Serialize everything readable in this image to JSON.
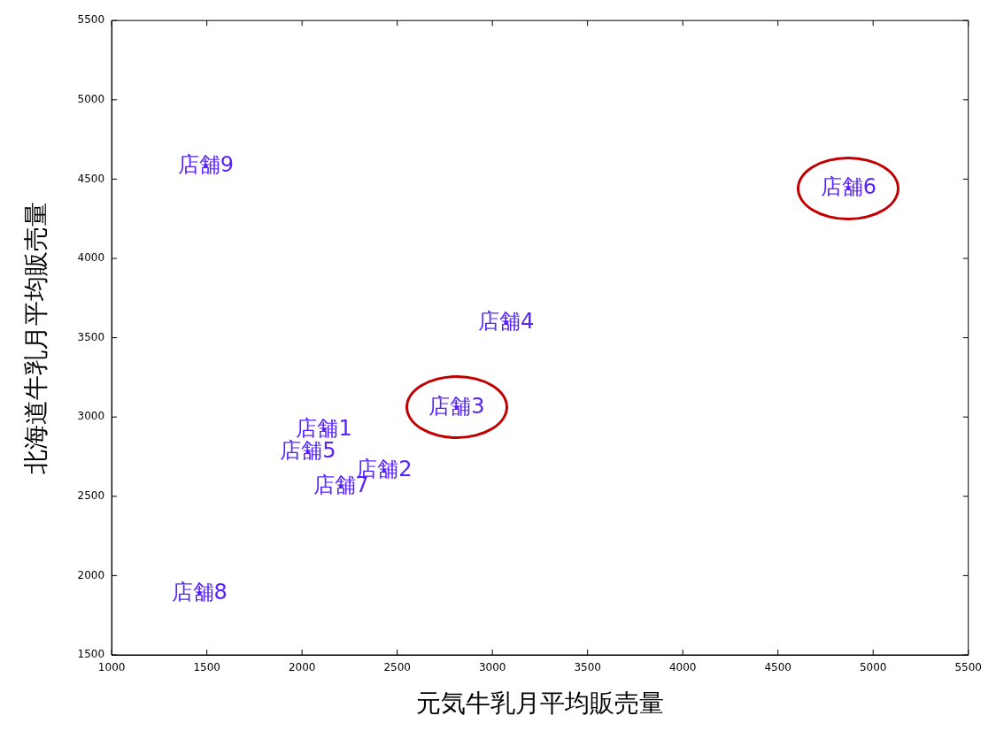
{
  "chart_data": {
    "type": "scatter",
    "xlabel": "元気牛乳月平均販売量",
    "ylabel": "北海道牛乳月平均販売量",
    "x": [
      2116,
      2431,
      2813,
      3072,
      2031,
      4870,
      2205,
      1461,
      1494
    ],
    "values": [
      2920,
      2661,
      3060,
      3595,
      2779,
      4442,
      2563,
      1889,
      4582
    ],
    "value_labels": [
      "店舗1",
      "店舗2",
      "店舗3",
      "店舗4",
      "店舗5",
      "店舗6",
      "店舗7",
      "店舗8",
      "店舗9"
    ],
    "color": "#5522ff",
    "marker": "circle",
    "grid": false,
    "xlim": [
      1000,
      5500
    ],
    "xticks": [
      1000,
      1500,
      2000,
      2500,
      3000,
      3500,
      4000,
      4500,
      5000,
      5500
    ],
    "ylim": [
      1500,
      5500
    ],
    "yticks": [
      1500,
      2000,
      2500,
      3000,
      3500,
      4000,
      4500,
      5000,
      5500
    ]
  }
}
